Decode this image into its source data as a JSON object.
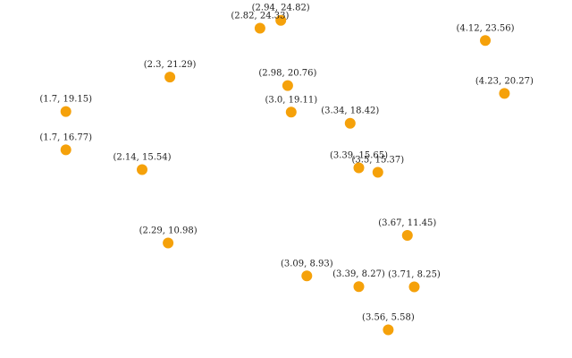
{
  "chart_data": {
    "type": "scatter",
    "title": "",
    "xlabel": "",
    "ylabel": "",
    "xlim": [
      1.32,
      4.62
    ],
    "ylim": [
      3.83,
      26.08
    ],
    "grid": false,
    "axes_visible": false,
    "marker_color": "#f5a10a",
    "points": [
      {
        "x": 2.82,
        "y": 24.33,
        "label": "(2.82, 24.33)"
      },
      {
        "x": 2.94,
        "y": 24.82,
        "label": "(2.94, 24.82)"
      },
      {
        "x": 4.12,
        "y": 23.56,
        "label": "(4.12, 23.56)"
      },
      {
        "x": 2.3,
        "y": 21.29,
        "label": "(2.3, 21.29)"
      },
      {
        "x": 2.98,
        "y": 20.76,
        "label": "(2.98, 20.76)"
      },
      {
        "x": 4.23,
        "y": 20.27,
        "label": "(4.23, 20.27)"
      },
      {
        "x": 1.7,
        "y": 19.15,
        "label": "(1.7, 19.15)"
      },
      {
        "x": 3.0,
        "y": 19.11,
        "label": "(3.0, 19.11)"
      },
      {
        "x": 3.34,
        "y": 18.42,
        "label": "(3.34, 18.42)"
      },
      {
        "x": 1.7,
        "y": 16.77,
        "label": "(1.7, 16.77)"
      },
      {
        "x": 2.14,
        "y": 15.54,
        "label": "(2.14, 15.54)"
      },
      {
        "x": 3.39,
        "y": 15.65,
        "label": "(3.39, 15.65)"
      },
      {
        "x": 3.5,
        "y": 15.37,
        "label": "(3.5, 15.37)"
      },
      {
        "x": 3.67,
        "y": 11.45,
        "label": "(3.67, 11.45)"
      },
      {
        "x": 2.29,
        "y": 10.98,
        "label": "(2.29, 10.98)"
      },
      {
        "x": 3.09,
        "y": 8.93,
        "label": "(3.09, 8.93)"
      },
      {
        "x": 3.39,
        "y": 8.27,
        "label": "(3.39, 8.27)"
      },
      {
        "x": 3.71,
        "y": 8.25,
        "label": "(3.71, 8.25)"
      },
      {
        "x": 3.56,
        "y": 5.58,
        "label": "(3.56, 5.58)"
      }
    ]
  }
}
